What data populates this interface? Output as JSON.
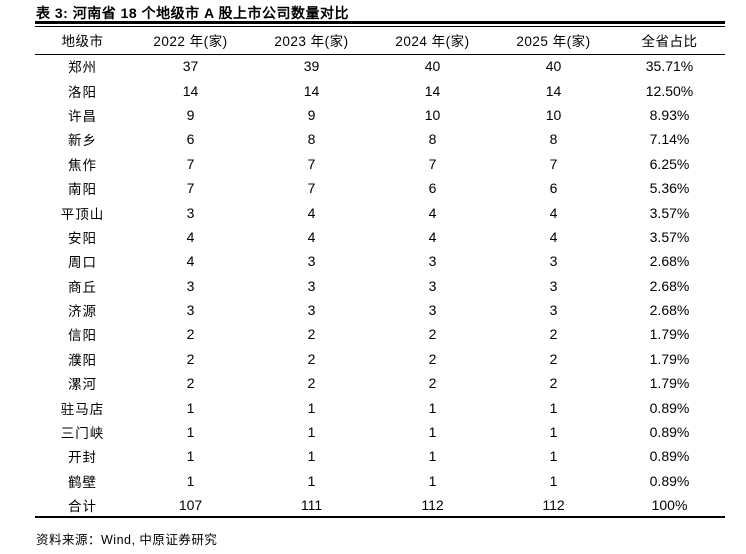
{
  "title": "表 3:  河南省 18 个地级市 A 股上市公司数量对比",
  "footer": {
    "source_label": "资料来源：Wind,  中原证券研究"
  },
  "colors": {
    "text": "#000000",
    "rule": "#000000",
    "background": "#ffffff"
  },
  "chart_data": {
    "type": "table",
    "title": "表 3: 河南省 18 个地级市 A 股上市公司数量对比",
    "columns": [
      "地级市",
      "2022 年(家)",
      "2023 年(家)",
      "2024 年(家)",
      "2025 年(家)",
      "全省占比"
    ],
    "rows": [
      [
        "郑州",
        "37",
        "39",
        "40",
        "40",
        "35.71%"
      ],
      [
        "洛阳",
        "14",
        "14",
        "14",
        "14",
        "12.50%"
      ],
      [
        "许昌",
        "9",
        "9",
        "10",
        "10",
        "8.93%"
      ],
      [
        "新乡",
        "6",
        "8",
        "8",
        "8",
        "7.14%"
      ],
      [
        "焦作",
        "7",
        "7",
        "7",
        "7",
        "6.25%"
      ],
      [
        "南阳",
        "7",
        "7",
        "6",
        "6",
        "5.36%"
      ],
      [
        "平顶山",
        "3",
        "4",
        "4",
        "4",
        "3.57%"
      ],
      [
        "安阳",
        "4",
        "4",
        "4",
        "4",
        "3.57%"
      ],
      [
        "周口",
        "4",
        "3",
        "3",
        "3",
        "2.68%"
      ],
      [
        "商丘",
        "3",
        "3",
        "3",
        "3",
        "2.68%"
      ],
      [
        "济源",
        "3",
        "3",
        "3",
        "3",
        "2.68%"
      ],
      [
        "信阳",
        "2",
        "2",
        "2",
        "2",
        "1.79%"
      ],
      [
        "濮阳",
        "2",
        "2",
        "2",
        "2",
        "1.79%"
      ],
      [
        "漯河",
        "2",
        "2",
        "2",
        "2",
        "1.79%"
      ],
      [
        "驻马店",
        "1",
        "1",
        "1",
        "1",
        "0.89%"
      ],
      [
        "三门峡",
        "1",
        "1",
        "1",
        "1",
        "0.89%"
      ],
      [
        "开封",
        "1",
        "1",
        "1",
        "1",
        "0.89%"
      ],
      [
        "鹤壁",
        "1",
        "1",
        "1",
        "1",
        "0.89%"
      ],
      [
        "合计",
        "107",
        "111",
        "112",
        "112",
        "100%"
      ]
    ]
  }
}
